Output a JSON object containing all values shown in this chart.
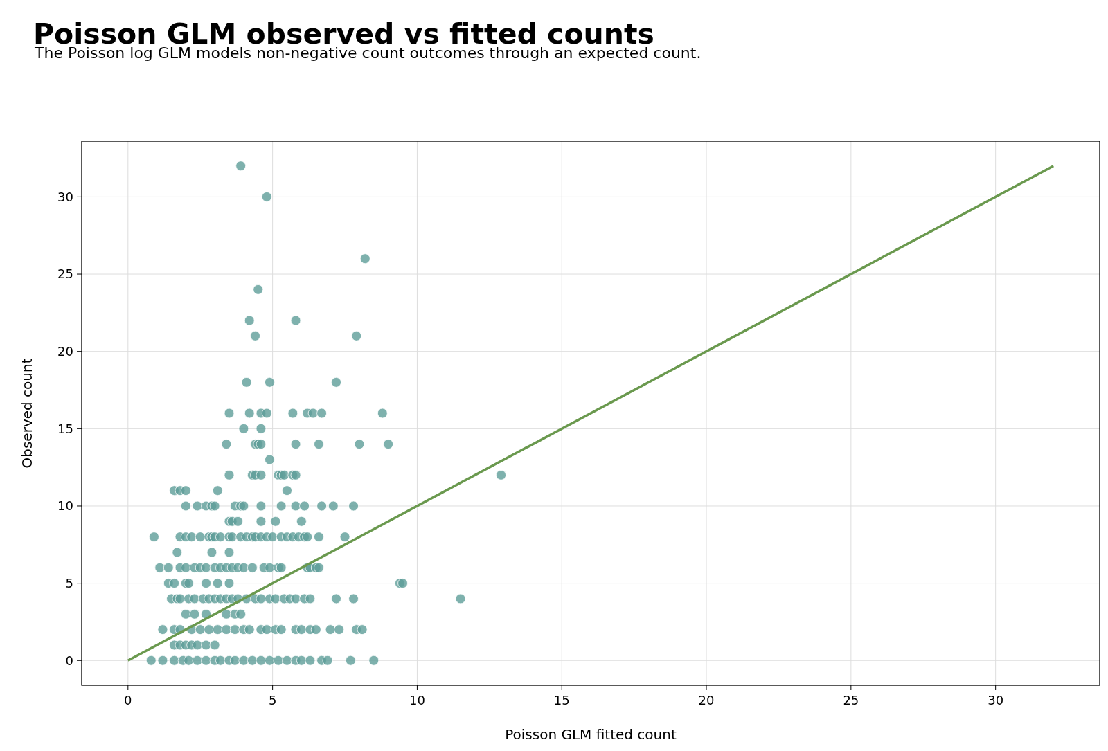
{
  "chart_data": {
    "type": "scatter",
    "title": "Poisson GLM observed vs fitted counts",
    "subtitle": "The Poisson log GLM models non-negative count outcomes through an expected count.",
    "xlabel": "Poisson GLM fitted count",
    "ylabel": "Observed count",
    "xlim": [
      -1.6,
      33.6
    ],
    "ylim": [
      -1.6,
      33.6
    ],
    "xticks": [
      0,
      5,
      10,
      15,
      20,
      25,
      30
    ],
    "yticks": [
      0,
      5,
      10,
      15,
      20,
      25,
      30
    ],
    "grid": true,
    "series": [
      {
        "color": "#5e9e99",
        "marker": "circle",
        "x": [
          3.9,
          4.8,
          8.2,
          4.5,
          4.2,
          5.8,
          4.4,
          7.9,
          4.1,
          4.9,
          7.2,
          3.5,
          4.2,
          4.6,
          4.8,
          5.7,
          6.2,
          6.4,
          6.7,
          8.8,
          4.0,
          4.6,
          3.4,
          4.4,
          4.5,
          4.6,
          5.8,
          6.6,
          8.0,
          9.0,
          4.9,
          3.5,
          4.3,
          4.4,
          4.6,
          5.2,
          5.3,
          5.4,
          5.7,
          5.8,
          12.9,
          1.6,
          1.8,
          2.0,
          3.1,
          5.5,
          2.0,
          2.4,
          2.7,
          2.9,
          3.0,
          3.7,
          3.9,
          4.0,
          4.6,
          5.3,
          5.8,
          6.1,
          6.7,
          7.1,
          7.8,
          3.5,
          3.6,
          3.8,
          4.6,
          5.1,
          6.0,
          0.9,
          1.8,
          2.0,
          2.2,
          2.5,
          2.8,
          2.9,
          3.0,
          3.2,
          3.5,
          3.6,
          3.9,
          4.1,
          4.3,
          4.4,
          4.6,
          4.8,
          5.0,
          5.3,
          5.5,
          5.7,
          5.9,
          6.1,
          6.2,
          6.6,
          7.5,
          1.7,
          2.9,
          3.5,
          1.1,
          1.4,
          1.8,
          2.0,
          2.3,
          2.5,
          2.7,
          3.0,
          3.2,
          3.4,
          3.6,
          3.8,
          4.0,
          4.3,
          4.7,
          4.9,
          5.2,
          5.3,
          6.2,
          6.3,
          6.5,
          6.6,
          1.4,
          1.6,
          2.0,
          2.1,
          2.7,
          3.1,
          3.5,
          9.4,
          9.5,
          1.5,
          1.7,
          1.8,
          2.1,
          2.3,
          2.6,
          2.8,
          3.0,
          3.2,
          3.4,
          3.6,
          3.8,
          4.1,
          4.4,
          4.6,
          4.9,
          5.1,
          5.4,
          5.6,
          5.8,
          6.1,
          6.3,
          7.2,
          7.8,
          11.5,
          2.0,
          2.3,
          2.7,
          3.4,
          3.7,
          3.9,
          1.2,
          1.6,
          1.8,
          2.2,
          2.5,
          2.8,
          3.1,
          3.4,
          3.7,
          4.0,
          4.2,
          4.6,
          4.8,
          5.1,
          5.3,
          5.8,
          6.0,
          6.3,
          6.5,
          7.0,
          7.3,
          7.9,
          8.1,
          1.6,
          1.8,
          2.0,
          2.2,
          2.4,
          2.7,
          3.0,
          0.8,
          1.2,
          1.6,
          1.9,
          2.1,
          2.4,
          2.7,
          3.0,
          3.2,
          3.5,
          3.7,
          4.0,
          4.3,
          4.6,
          4.9,
          5.2,
          5.5,
          5.8,
          6.0,
          6.3,
          6.7,
          6.9,
          7.7,
          8.5
        ],
        "values": [
          32,
          30,
          26,
          24,
          22,
          22,
          21,
          21,
          18,
          18,
          18,
          16,
          16,
          16,
          16,
          16,
          16,
          16,
          16,
          16,
          15,
          15,
          14,
          14,
          14,
          14,
          14,
          14,
          14,
          14,
          13,
          12,
          12,
          12,
          12,
          12,
          12,
          12,
          12,
          12,
          12,
          11,
          11,
          11,
          11,
          11,
          10,
          10,
          10,
          10,
          10,
          10,
          10,
          10,
          10,
          10,
          10,
          10,
          10,
          10,
          10,
          9,
          9,
          9,
          9,
          9,
          9,
          8,
          8,
          8,
          8,
          8,
          8,
          8,
          8,
          8,
          8,
          8,
          8,
          8,
          8,
          8,
          8,
          8,
          8,
          8,
          8,
          8,
          8,
          8,
          8,
          8,
          8,
          7,
          7,
          7,
          6,
          6,
          6,
          6,
          6,
          6,
          6,
          6,
          6,
          6,
          6,
          6,
          6,
          6,
          6,
          6,
          6,
          6,
          6,
          6,
          6,
          6,
          5,
          5,
          5,
          5,
          5,
          5,
          5,
          5,
          5,
          4,
          4,
          4,
          4,
          4,
          4,
          4,
          4,
          4,
          4,
          4,
          4,
          4,
          4,
          4,
          4,
          4,
          4,
          4,
          4,
          4,
          4,
          4,
          4,
          4,
          3,
          3,
          3,
          3,
          3,
          3,
          2,
          2,
          2,
          2,
          2,
          2,
          2,
          2,
          2,
          2,
          2,
          2,
          2,
          2,
          2,
          2,
          2,
          2,
          2,
          2,
          2,
          2,
          2,
          1,
          1,
          1,
          1,
          1,
          1,
          1,
          0,
          0,
          0,
          0,
          0,
          0,
          0,
          0,
          0,
          0,
          0,
          0,
          0,
          0,
          0,
          0,
          0,
          0,
          0,
          0,
          0,
          0,
          0,
          0
        ]
      },
      {
        "type": "line",
        "color": "#6a994e",
        "marker": "none",
        "line_style": "solid",
        "x": [
          0,
          32
        ],
        "values": [
          0,
          32
        ]
      }
    ]
  }
}
